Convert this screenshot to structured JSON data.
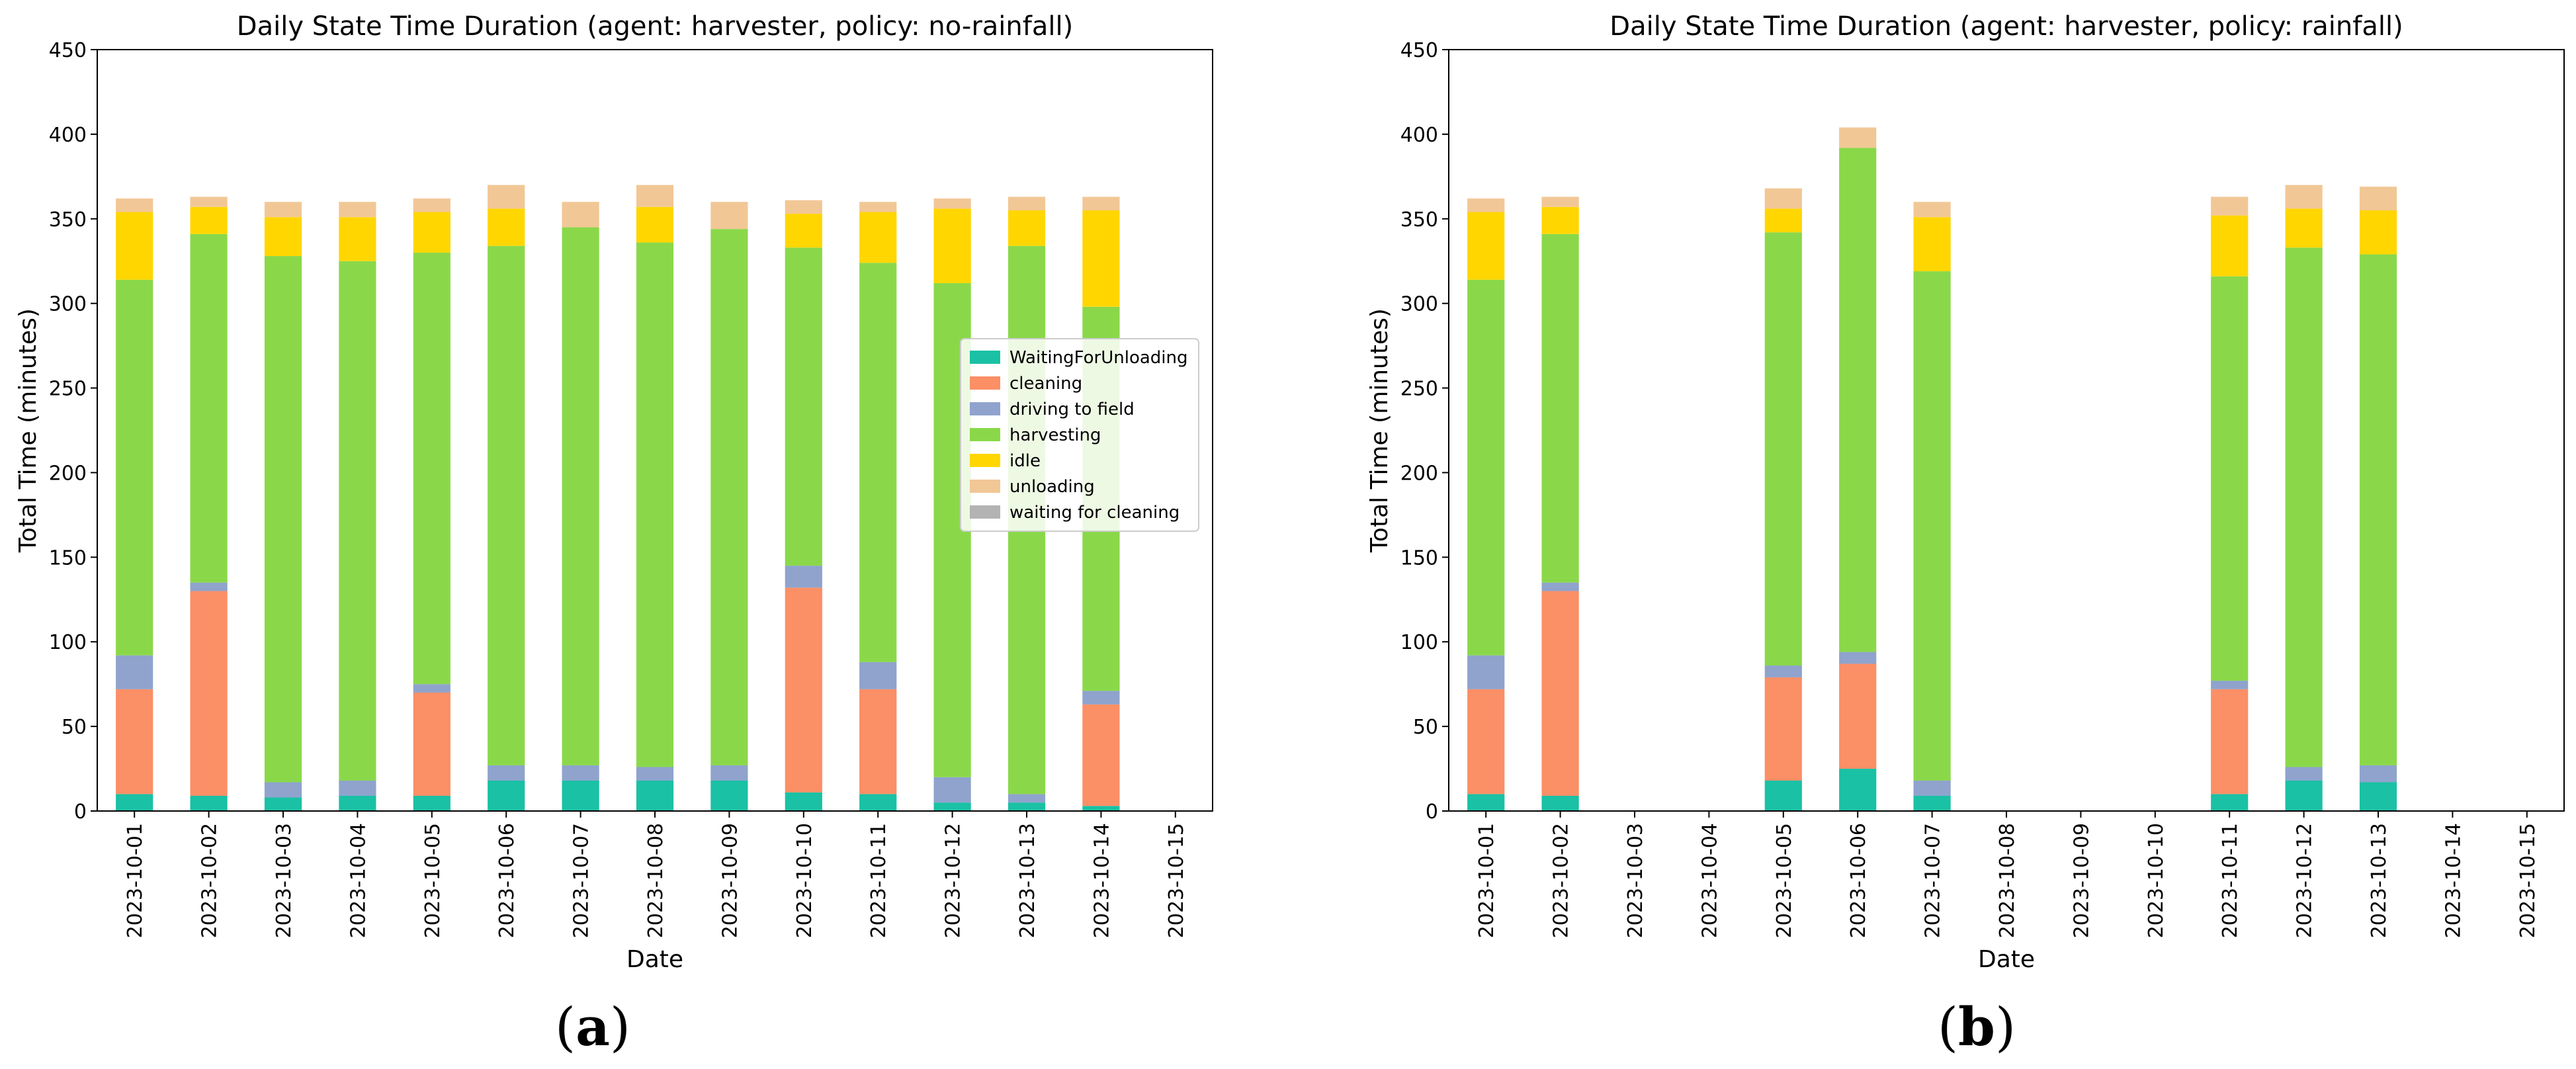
{
  "colors": {
    "WaitingForUnloading": "#1ac1a4",
    "cleaning": "#fb8f66",
    "driving to field": "#8fa3cd",
    "harvesting": "#8ad84a",
    "idle": "#ffd600",
    "unloading": "#f2c796",
    "waiting for cleaning": "#b3b3b3"
  },
  "chart_data": [
    {
      "type": "bar",
      "stacked": true,
      "panel_label": "a",
      "title": "Daily State Time Duration (agent: harvester, policy: no-rainfall)",
      "xlabel": "Date",
      "ylabel": "Total Time (minutes)",
      "ylim": [
        0,
        450
      ],
      "yticks": [
        0,
        50,
        100,
        150,
        200,
        250,
        300,
        350,
        400,
        450
      ],
      "legend_position": "center-right",
      "categories": [
        "2023-10-01",
        "2023-10-02",
        "2023-10-03",
        "2023-10-04",
        "2023-10-05",
        "2023-10-06",
        "2023-10-07",
        "2023-10-08",
        "2023-10-09",
        "2023-10-10",
        "2023-10-11",
        "2023-10-12",
        "2023-10-13",
        "2023-10-14",
        "2023-10-15"
      ],
      "series": [
        {
          "name": "WaitingForUnloading",
          "values": [
            10,
            9,
            8,
            9,
            9,
            18,
            18,
            18,
            18,
            11,
            10,
            5,
            5,
            3,
            0
          ]
        },
        {
          "name": "cleaning",
          "values": [
            62,
            121,
            0,
            0,
            61,
            0,
            0,
            0,
            0,
            121,
            62,
            0,
            0,
            60,
            0
          ]
        },
        {
          "name": "driving to field",
          "values": [
            20,
            5,
            9,
            9,
            5,
            9,
            9,
            8,
            9,
            13,
            16,
            15,
            5,
            8,
            0
          ]
        },
        {
          "name": "harvesting",
          "values": [
            222,
            206,
            311,
            307,
            255,
            307,
            318,
            310,
            317,
            188,
            236,
            292,
            324,
            227,
            0
          ]
        },
        {
          "name": "idle",
          "values": [
            40,
            16,
            23,
            26,
            24,
            22,
            0,
            21,
            0,
            20,
            30,
            44,
            21,
            57,
            0
          ]
        },
        {
          "name": "unloading",
          "values": [
            8,
            6,
            9,
            9,
            8,
            14,
            15,
            13,
            16,
            8,
            6,
            6,
            8,
            8,
            0
          ]
        },
        {
          "name": "waiting for cleaning",
          "values": [
            0,
            0,
            0,
            0,
            0,
            0,
            0,
            0,
            0,
            0,
            0,
            0,
            0,
            0,
            0
          ]
        }
      ]
    },
    {
      "type": "bar",
      "stacked": true,
      "panel_label": "b",
      "title": "Daily State Time Duration (agent: harvester, policy: rainfall)",
      "xlabel": "Date",
      "ylabel": "Total Time (minutes)",
      "ylim": [
        0,
        450
      ],
      "yticks": [
        0,
        50,
        100,
        150,
        200,
        250,
        300,
        350,
        400,
        450
      ],
      "categories": [
        "2023-10-01",
        "2023-10-02",
        "2023-10-03",
        "2023-10-04",
        "2023-10-05",
        "2023-10-06",
        "2023-10-07",
        "2023-10-08",
        "2023-10-09",
        "2023-10-10",
        "2023-10-11",
        "2023-10-12",
        "2023-10-13",
        "2023-10-14",
        "2023-10-15"
      ],
      "series": [
        {
          "name": "WaitingForUnloading",
          "values": [
            10,
            9,
            0,
            0,
            18,
            25,
            9,
            0,
            0,
            0,
            10,
            18,
            17,
            0,
            0
          ]
        },
        {
          "name": "cleaning",
          "values": [
            62,
            121,
            0,
            0,
            61,
            62,
            0,
            0,
            0,
            0,
            62,
            0,
            0,
            0,
            0
          ]
        },
        {
          "name": "driving to field",
          "values": [
            20,
            5,
            0,
            0,
            7,
            7,
            9,
            0,
            0,
            0,
            5,
            8,
            10,
            0,
            0
          ]
        },
        {
          "name": "harvesting",
          "values": [
            222,
            206,
            0,
            0,
            256,
            298,
            301,
            0,
            0,
            0,
            239,
            307,
            302,
            0,
            0
          ]
        },
        {
          "name": "idle",
          "values": [
            40,
            16,
            0,
            0,
            14,
            0,
            32,
            0,
            0,
            0,
            36,
            23,
            26,
            0,
            0
          ]
        },
        {
          "name": "unloading",
          "values": [
            8,
            6,
            0,
            0,
            12,
            12,
            9,
            0,
            0,
            0,
            11,
            14,
            14,
            0,
            0
          ]
        },
        {
          "name": "waiting for cleaning",
          "values": [
            0,
            0,
            0,
            0,
            0,
            0,
            0,
            0,
            0,
            0,
            0,
            0,
            0,
            0,
            0
          ]
        }
      ]
    }
  ]
}
